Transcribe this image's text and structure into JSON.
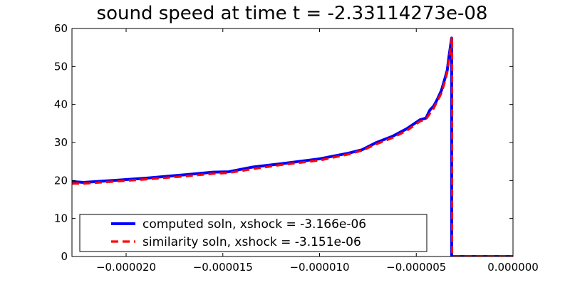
{
  "chart_data": {
    "type": "line",
    "title": "sound speed at time t = -2.33114273e-08",
    "xlabel": "",
    "ylabel": "",
    "xlim": [
      -2.28e-05,
      0.0
    ],
    "ylim": [
      0,
      60
    ],
    "grid": false,
    "legend_position": "lower-center",
    "x_ticks": [
      {
        "value": -2e-05,
        "label": "−0.000020"
      },
      {
        "value": -1.5e-05,
        "label": "−0.000015"
      },
      {
        "value": -1e-05,
        "label": "−0.000010"
      },
      {
        "value": -5e-06,
        "label": "−0.000005"
      },
      {
        "value": 0.0,
        "label": "0.000000"
      }
    ],
    "y_ticks": [
      {
        "value": 0,
        "label": "0"
      },
      {
        "value": 10,
        "label": "10"
      },
      {
        "value": 20,
        "label": "20"
      },
      {
        "value": 30,
        "label": "30"
      },
      {
        "value": 40,
        "label": "40"
      },
      {
        "value": 50,
        "label": "50"
      },
      {
        "value": 60,
        "label": "60"
      }
    ],
    "series": [
      {
        "name": "computed soln, xshock = -3.166e-06",
        "color": "#0000ff",
        "style": "solid",
        "x": [
          -2.28e-05,
          -2.22e-05,
          -2.1e-05,
          -1.9e-05,
          -1.7e-05,
          -1.55e-05,
          -1.47e-05,
          -1.35e-05,
          -1.2e-05,
          -1e-05,
          -8.5e-06,
          -7.8e-06,
          -7.1e-06,
          -6.2e-06,
          -5.5e-06,
          -4.8e-06,
          -4.5e-06,
          -4.3e-06,
          -4.1e-06,
          -4e-06,
          -3.9e-06,
          -3.7e-06,
          -3.5e-06,
          -3.4e-06,
          -3.3e-06,
          -3.17e-06,
          -3.17e-06,
          -3.1e-06,
          0.0
        ],
        "y": [
          19.7,
          19.5,
          19.9,
          20.6,
          21.5,
          22.2,
          22.3,
          23.5,
          24.4,
          25.7,
          27.2,
          28.1,
          29.9,
          31.7,
          33.6,
          36.0,
          36.4,
          38.5,
          39.6,
          40.5,
          41.5,
          43.7,
          47.2,
          49.0,
          53.0,
          57.5,
          0.0,
          0.0,
          0.0
        ]
      },
      {
        "name": "similarity soln,  xshock = -3.151e-06",
        "color": "#ff0000",
        "style": "dashed",
        "x": [
          -2.28e-05,
          -2.22e-05,
          -2.1e-05,
          -1.9e-05,
          -1.7e-05,
          -1.55e-05,
          -1.47e-05,
          -1.35e-05,
          -1.2e-05,
          -1e-05,
          -8.5e-06,
          -7.8e-06,
          -7.1e-06,
          -6.2e-06,
          -5.5e-06,
          -4.8e-06,
          -4.5e-06,
          -4.3e-06,
          -4.1e-06,
          -4e-06,
          -3.9e-06,
          -3.7e-06,
          -3.5e-06,
          -3.4e-06,
          -3.3e-06,
          -3.15e-06,
          -3.15e-06,
          -3.1e-06,
          0.0
        ],
        "y": [
          19.2,
          19.2,
          19.6,
          20.3,
          21.1,
          21.8,
          22.0,
          23.0,
          24.1,
          25.3,
          26.9,
          27.9,
          29.5,
          31.3,
          33.1,
          35.6,
          36.1,
          37.6,
          39.0,
          40.0,
          41.0,
          43.0,
          46.4,
          48.5,
          52.0,
          57.8,
          0.0,
          0.0,
          0.0
        ]
      }
    ]
  }
}
